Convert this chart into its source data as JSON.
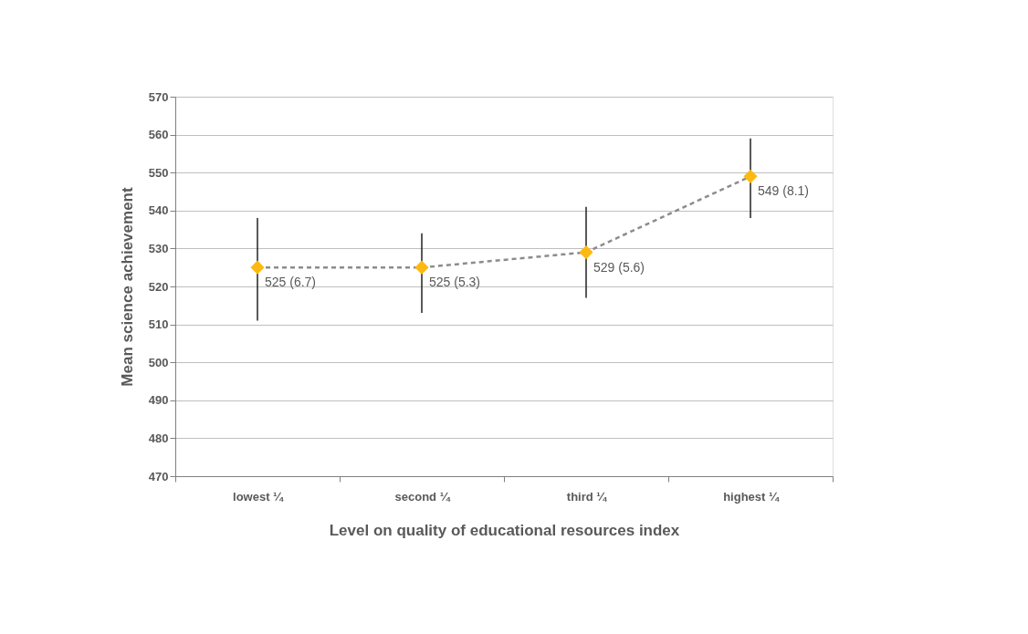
{
  "chart_data": {
    "type": "line",
    "xlabel": "Level on quality of educational resources index",
    "ylabel": "Mean science achievement",
    "categories": [
      "lowest ¼",
      "second ¼",
      "third ¼",
      "highest ¼"
    ],
    "series": [
      {
        "color": "#fdb913",
        "values": [
          525,
          525,
          529,
          549
        ],
        "errors": [
          [
            511,
            538
          ],
          [
            513,
            534
          ],
          [
            517,
            541
          ],
          [
            538,
            559
          ]
        ],
        "value_labels": [
          "525 (6.7)",
          "525 (5.3)",
          "529 (5.6)",
          "549 (8.1)"
        ]
      }
    ],
    "ylim": [
      470,
      570
    ],
    "yticks": [
      470,
      480,
      490,
      500,
      510,
      520,
      530,
      540,
      550,
      560,
      570
    ],
    "grid": "y",
    "legend": false,
    "marker": "diamond",
    "line_style": "dashed"
  }
}
